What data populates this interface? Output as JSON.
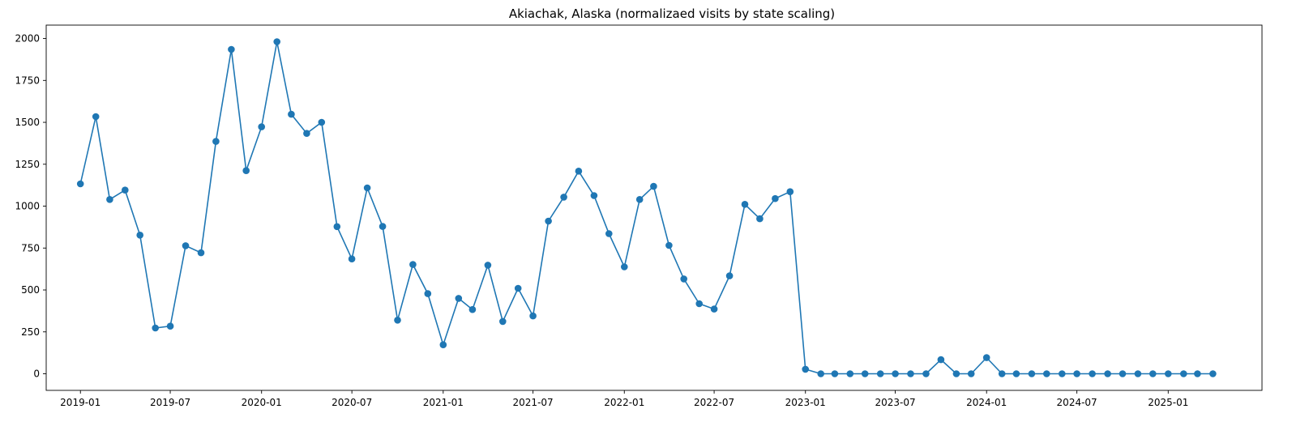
{
  "chart_data": {
    "type": "line",
    "title": "Akiachak, Alaska (normalizaed visits by state scaling)",
    "xlabel": "",
    "ylabel": "",
    "grid": false,
    "marker": "circle",
    "color": "#1f77b4",
    "xlim": [
      "2018-10-24",
      "2025-07-09"
    ],
    "ylim": [
      -99,
      2080
    ],
    "x_ticks": [
      "2019-01",
      "2019-07",
      "2020-01",
      "2020-07",
      "2021-01",
      "2021-07",
      "2022-01",
      "2022-07",
      "2023-01",
      "2023-07",
      "2024-01",
      "2024-07",
      "2025-01"
    ],
    "y_ticks": [
      0,
      250,
      500,
      750,
      1000,
      1250,
      1500,
      1750,
      2000
    ],
    "series": [
      {
        "x": [
          "2019-01",
          "2019-02",
          "2019-03",
          "2019-04",
          "2019-05",
          "2019-06",
          "2019-07",
          "2019-08",
          "2019-09",
          "2019-10",
          "2019-11",
          "2019-12",
          "2020-01",
          "2020-02",
          "2020-03",
          "2020-04",
          "2020-05",
          "2020-06",
          "2020-07",
          "2020-08",
          "2020-09",
          "2020-10",
          "2020-11",
          "2020-12",
          "2021-01",
          "2021-02",
          "2021-03",
          "2021-04",
          "2021-05",
          "2021-06",
          "2021-07",
          "2021-08",
          "2021-09",
          "2021-10",
          "2021-11",
          "2021-12",
          "2022-01",
          "2022-02",
          "2022-03",
          "2022-04",
          "2022-05",
          "2022-06",
          "2022-07",
          "2022-08",
          "2022-09",
          "2022-10",
          "2022-11",
          "2022-12",
          "2023-01",
          "2023-02",
          "2023-03",
          "2023-04",
          "2023-05",
          "2023-06",
          "2023-07",
          "2023-08",
          "2023-09",
          "2023-10",
          "2023-11",
          "2023-12",
          "2024-01",
          "2024-02",
          "2024-03",
          "2024-04",
          "2024-05",
          "2024-06",
          "2024-07",
          "2024-08",
          "2024-09",
          "2024-10",
          "2024-11",
          "2024-12",
          "2025-01",
          "2025-02",
          "2025-03",
          "2025-04"
        ],
        "values": [
          1133,
          1534,
          1040,
          1096,
          827,
          273,
          284,
          764,
          722,
          1386,
          1935,
          1212,
          1473,
          1981,
          1548,
          1434,
          1500,
          878,
          685,
          1109,
          879,
          320,
          652,
          478,
          173,
          450,
          383,
          648,
          312,
          510,
          345,
          911,
          1054,
          1209,
          1063,
          836,
          638,
          1040,
          1118,
          766,
          566,
          418,
          386,
          584,
          1011,
          925,
          1045,
          1086,
          27,
          0,
          0,
          0,
          0,
          0,
          0,
          0,
          0,
          84,
          0,
          0,
          96,
          0,
          0,
          0,
          0,
          0,
          0,
          0,
          0,
          0,
          0,
          0,
          0,
          0,
          0,
          0
        ]
      }
    ]
  }
}
